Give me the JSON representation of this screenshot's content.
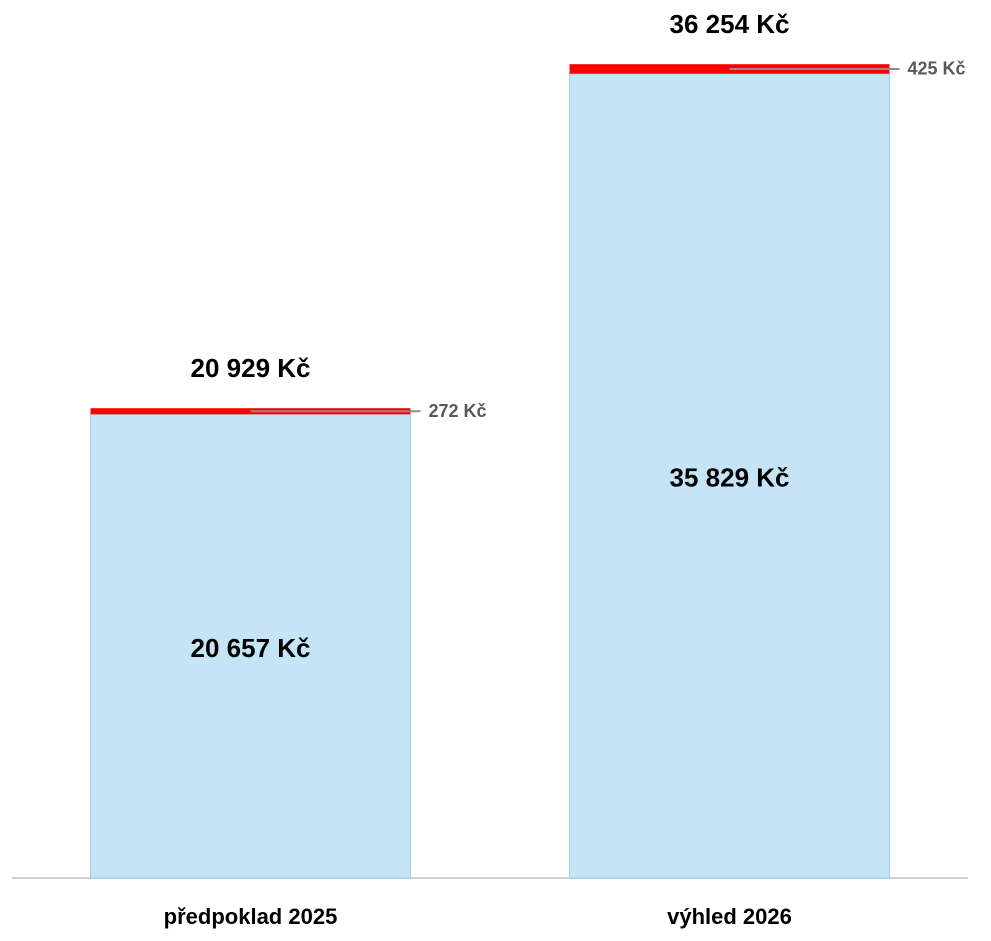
{
  "chart_data": {
    "type": "stacked_bar",
    "categories": [
      "předpoklad 2025",
      "výhled 2026"
    ],
    "series": [
      {
        "color": "#c5e4f5",
        "values": [
          20657,
          35829
        ],
        "value_labels": [
          "20 657 Kč",
          "35 829 Kč"
        ]
      },
      {
        "color": "#ff0000",
        "values": [
          272,
          425
        ],
        "value_labels": [
          "272 Kč",
          "425 Kč"
        ]
      }
    ],
    "totals": [
      20929,
      36254
    ],
    "total_labels": [
      "20 929 Kč",
      "36 254 Kč"
    ],
    "ylim": [
      0,
      38000
    ]
  }
}
